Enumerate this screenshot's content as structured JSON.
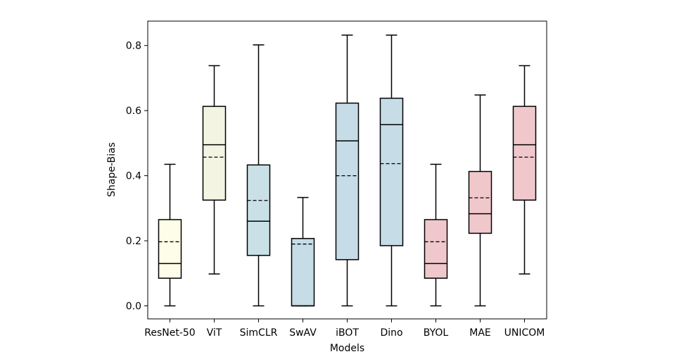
{
  "chart_data": {
    "type": "boxplot",
    "title": "",
    "xlabel": "Models",
    "ylabel": "Shape-Bias",
    "ylim": [
      -0.04,
      0.875
    ],
    "yticks": [
      0.0,
      0.2,
      0.4,
      0.6,
      0.8
    ],
    "ytick_labels": [
      "0.0",
      "0.2",
      "0.4",
      "0.6",
      "0.8"
    ],
    "grid": false,
    "median_line_style": "solid",
    "mean_line_style": "dashed",
    "boxes": [
      {
        "label": "ResNet-50",
        "whisker_low": 0.0,
        "q1": 0.085,
        "median": 0.13,
        "q3": 0.265,
        "whisker_high": 0.435,
        "mean": 0.197,
        "color": "#fdfde9"
      },
      {
        "label": "ViT",
        "whisker_low": 0.098,
        "q1": 0.325,
        "median": 0.495,
        "q3": 0.613,
        "whisker_high": 0.738,
        "mean": 0.457,
        "color": "#f4f4e3"
      },
      {
        "label": "SimCLR",
        "whisker_low": 0.0,
        "q1": 0.155,
        "median": 0.26,
        "q3": 0.433,
        "whisker_high": 0.802,
        "mean": 0.324,
        "color": "#c9e1e6"
      },
      {
        "label": "SwAV",
        "whisker_low": 0.0,
        "q1": 0.0,
        "median": 0.0,
        "q3": 0.207,
        "whisker_high": 0.333,
        "mean": 0.19,
        "color": "#c6dce6"
      },
      {
        "label": "iBOT",
        "whisker_low": 0.0,
        "q1": 0.142,
        "median": 0.507,
        "q3": 0.623,
        "whisker_high": 0.832,
        "mean": 0.4,
        "color": "#c6dce6"
      },
      {
        "label": "Dino",
        "whisker_low": 0.0,
        "q1": 0.185,
        "median": 0.557,
        "q3": 0.638,
        "whisker_high": 0.832,
        "mean": 0.437,
        "color": "#c6dce6"
      },
      {
        "label": "BYOL",
        "whisker_low": 0.0,
        "q1": 0.085,
        "median": 0.13,
        "q3": 0.265,
        "whisker_high": 0.435,
        "mean": 0.197,
        "color": "#f0c8cc"
      },
      {
        "label": "MAE",
        "whisker_low": 0.0,
        "q1": 0.223,
        "median": 0.283,
        "q3": 0.413,
        "whisker_high": 0.648,
        "mean": 0.332,
        "color": "#f0c8cc"
      },
      {
        "label": "UNICOM",
        "whisker_low": 0.098,
        "q1": 0.325,
        "median": 0.495,
        "q3": 0.613,
        "whisker_high": 0.738,
        "mean": 0.457,
        "color": "#f0c8cc"
      }
    ]
  }
}
